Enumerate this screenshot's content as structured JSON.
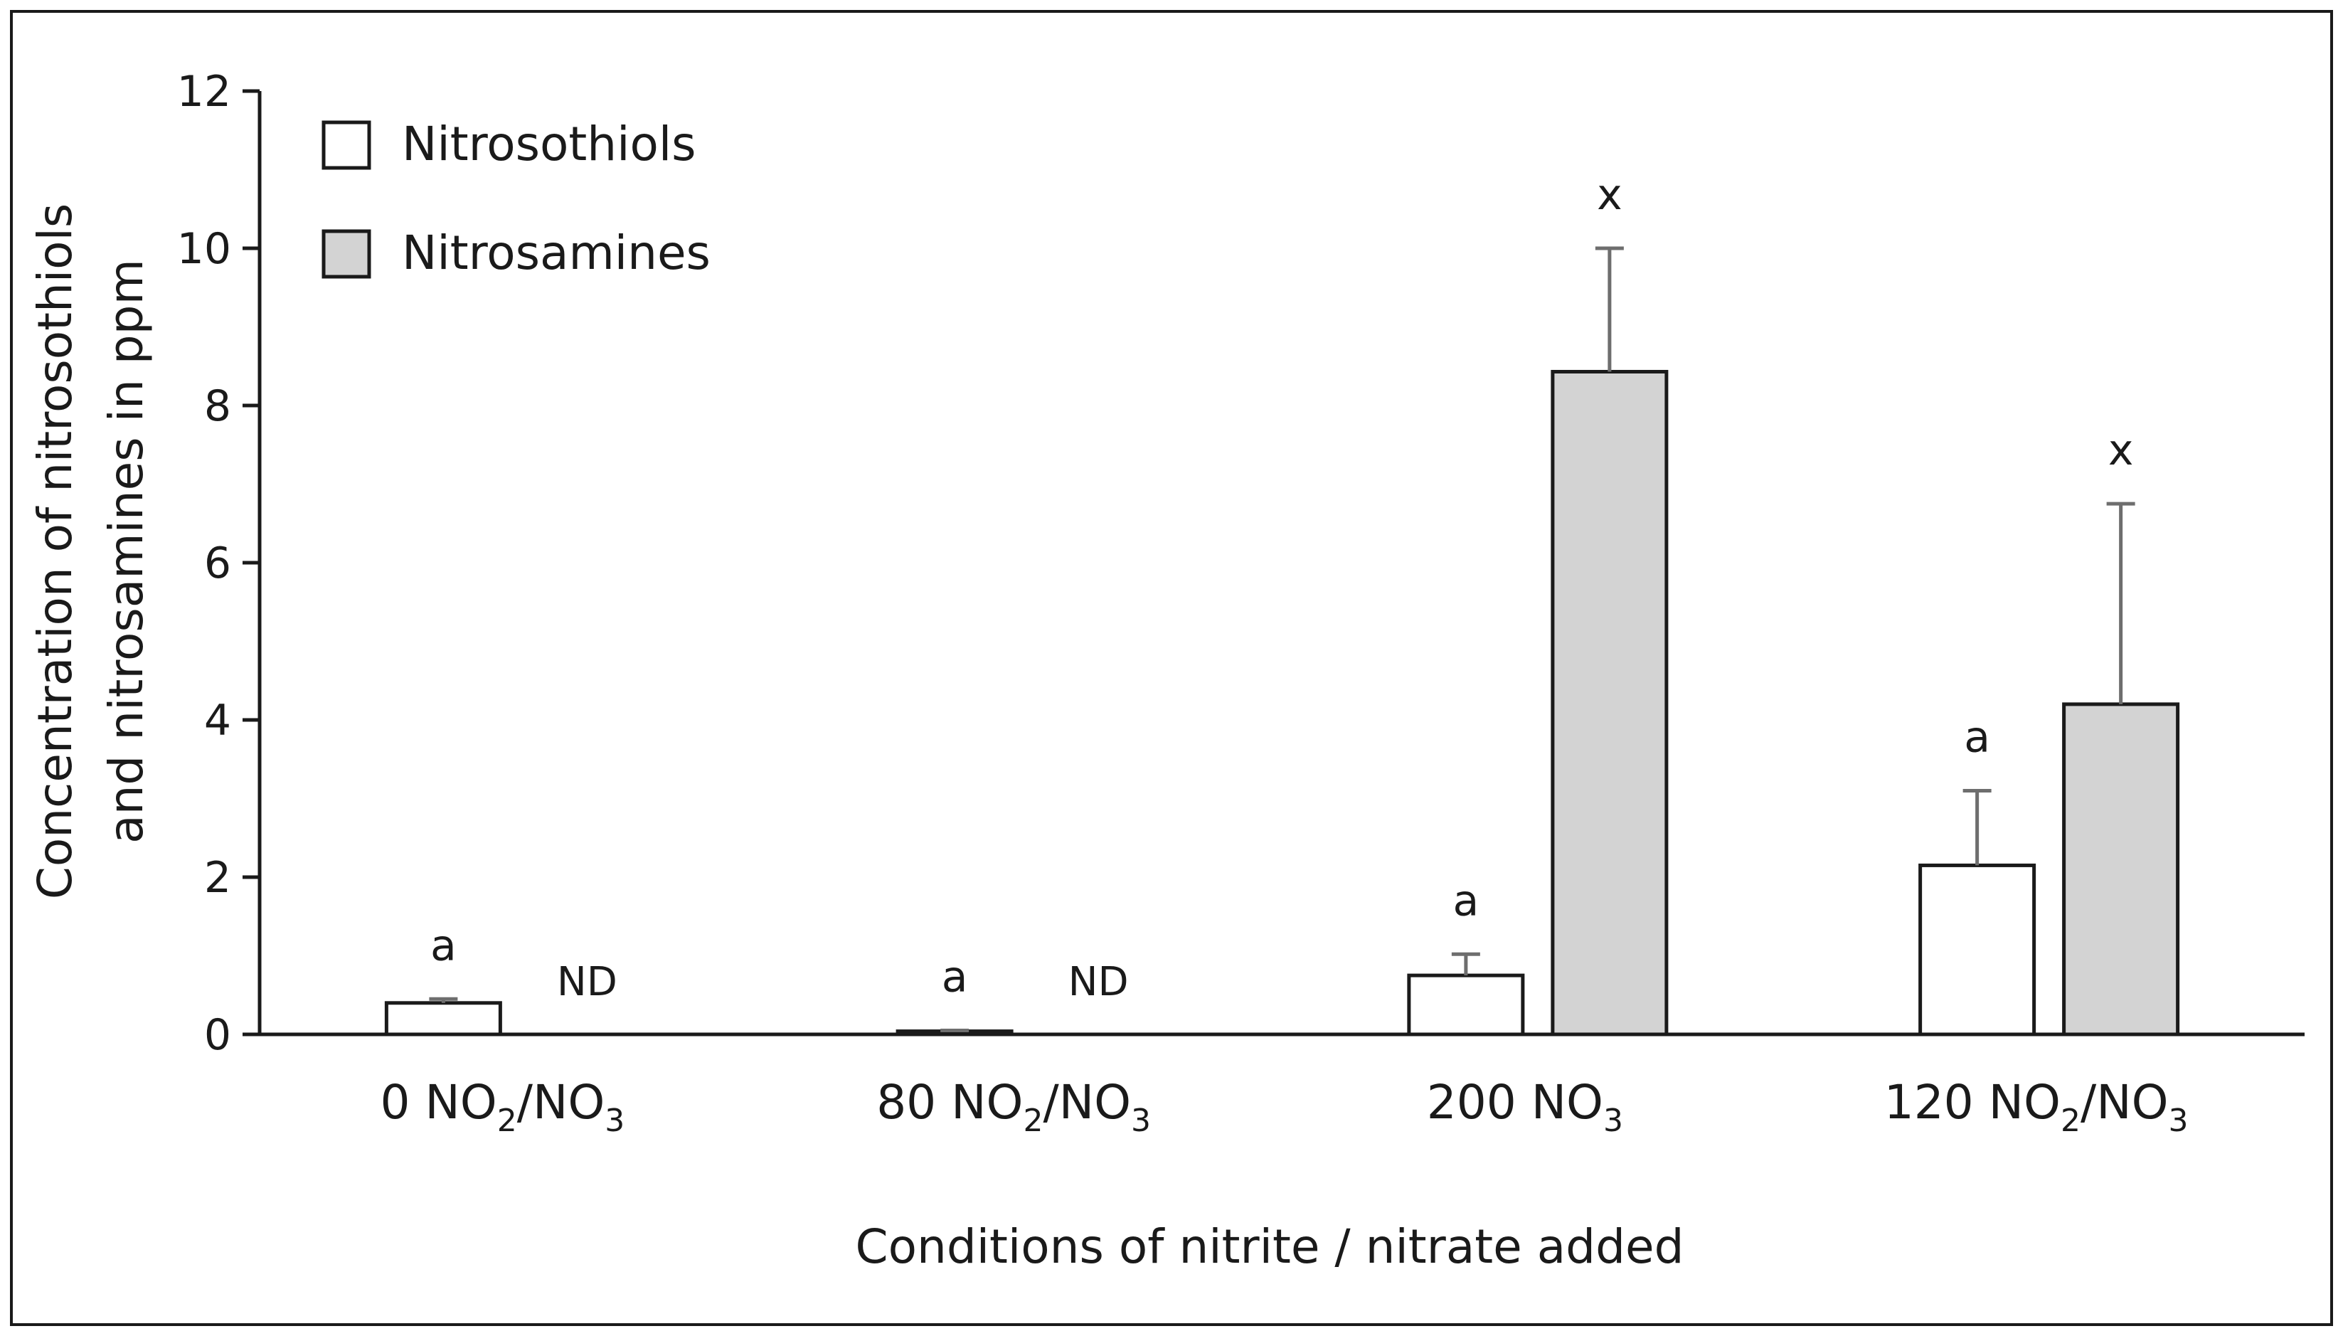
{
  "chart_data": {
    "type": "bar",
    "title": "",
    "xlabel": "Conditions of nitrite / nitrate added",
    "ylabel_lines": [
      "Concentration of nitrosothiols",
      "and nitrosamines in ppm"
    ],
    "ylim": [
      0,
      12
    ],
    "yticks": [
      0,
      2,
      4,
      6,
      8,
      10,
      12
    ],
    "grid": false,
    "legend_position": "top-left",
    "categories": [
      {
        "main": "0 NO",
        "sub1": "2",
        "mid": "/NO",
        "sub2": "3"
      },
      {
        "main": "80 NO",
        "sub1": "2",
        "mid": "/NO",
        "sub2": "3"
      },
      {
        "main": "200 NO",
        "sub1": "3",
        "mid": "",
        "sub2": ""
      },
      {
        "main": "120 NO",
        "sub1": "2",
        "mid": "/NO",
        "sub2": "3"
      }
    ],
    "series": [
      {
        "name": "Nitrosothiols",
        "color": "#ffffff",
        "values": [
          0.4,
          0.04,
          0.75,
          2.15
        ],
        "errors": [
          0.05,
          0.01,
          0.27,
          0.95
        ],
        "annotations": [
          "a",
          "a",
          "a",
          "a"
        ]
      },
      {
        "name": "Nitrosamines",
        "color": "#d3d3d3",
        "values": [
          null,
          null,
          8.43,
          4.2
        ],
        "errors": [
          null,
          null,
          1.57,
          2.55
        ],
        "annotations": [
          "ND",
          "ND",
          "x",
          "x"
        ]
      }
    ],
    "colors": {
      "outline": "#1a1a1a",
      "error_bar": "#6e6e6e"
    }
  }
}
